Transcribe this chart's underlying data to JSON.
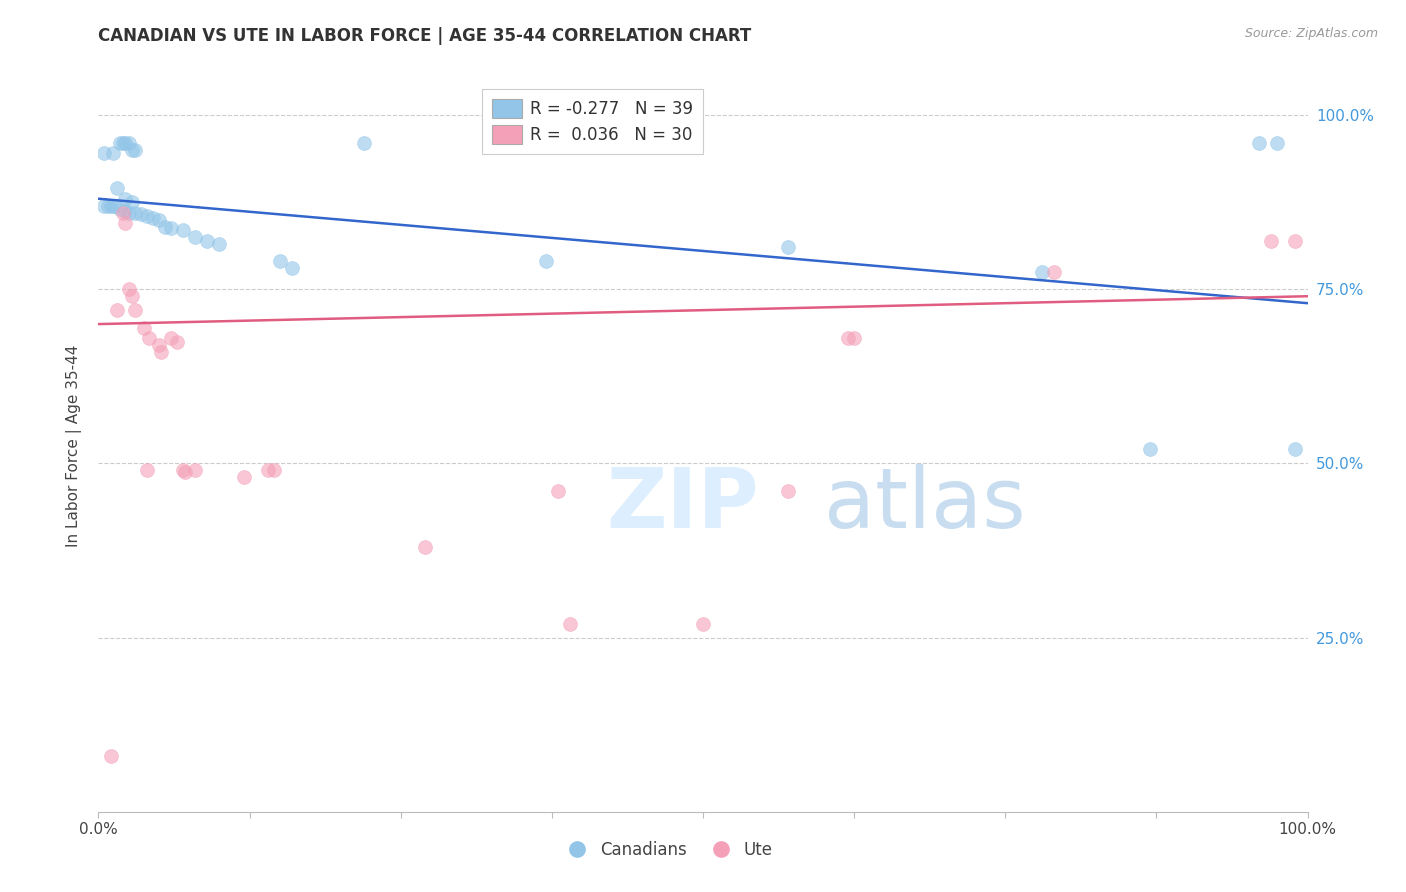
{
  "title": "CANADIAN VS UTE IN LABOR FORCE | AGE 35-44 CORRELATION CHART",
  "source": "Source: ZipAtlas.com",
  "ylabel": "In Labor Force | Age 35-44",
  "ytick_vals": [
    0.25,
    0.5,
    0.75,
    1.0
  ],
  "ytick_labels": [
    "25.0%",
    "50.0%",
    "75.0%",
    "100.0%"
  ],
  "blue_color": "#92C5E8",
  "pink_color": "#F4A0B8",
  "blue_line_color": "#3366CC",
  "pink_line_color": "#E05C80",
  "blue_scatter": [
    [
      0.005,
      0.945
    ],
    [
      0.012,
      0.945
    ],
    [
      0.018,
      0.96
    ],
    [
      0.02,
      0.96
    ],
    [
      0.022,
      0.96
    ],
    [
      0.025,
      0.96
    ],
    [
      0.028,
      0.95
    ],
    [
      0.03,
      0.95
    ],
    [
      0.015,
      0.895
    ],
    [
      0.022,
      0.88
    ],
    [
      0.028,
      0.875
    ],
    [
      0.005,
      0.87
    ],
    [
      0.008,
      0.87
    ],
    [
      0.01,
      0.87
    ],
    [
      0.013,
      0.87
    ],
    [
      0.018,
      0.865
    ],
    [
      0.022,
      0.862
    ],
    [
      0.025,
      0.86
    ],
    [
      0.03,
      0.86
    ],
    [
      0.035,
      0.858
    ],
    [
      0.04,
      0.855
    ],
    [
      0.045,
      0.852
    ],
    [
      0.05,
      0.85
    ],
    [
      0.055,
      0.84
    ],
    [
      0.06,
      0.838
    ],
    [
      0.07,
      0.835
    ],
    [
      0.08,
      0.825
    ],
    [
      0.09,
      0.82
    ],
    [
      0.1,
      0.815
    ],
    [
      0.15,
      0.79
    ],
    [
      0.16,
      0.78
    ],
    [
      0.22,
      0.96
    ],
    [
      0.37,
      0.79
    ],
    [
      0.57,
      0.81
    ],
    [
      0.78,
      0.775
    ],
    [
      0.87,
      0.52
    ],
    [
      0.96,
      0.96
    ],
    [
      0.975,
      0.96
    ],
    [
      0.99,
      0.52
    ]
  ],
  "pink_scatter": [
    [
      0.01,
      0.08
    ],
    [
      0.015,
      0.72
    ],
    [
      0.02,
      0.86
    ],
    [
      0.022,
      0.845
    ],
    [
      0.025,
      0.75
    ],
    [
      0.028,
      0.74
    ],
    [
      0.03,
      0.72
    ],
    [
      0.038,
      0.695
    ],
    [
      0.042,
      0.68
    ],
    [
      0.05,
      0.67
    ],
    [
      0.052,
      0.66
    ],
    [
      0.06,
      0.68
    ],
    [
      0.065,
      0.675
    ],
    [
      0.07,
      0.49
    ],
    [
      0.072,
      0.488
    ],
    [
      0.08,
      0.49
    ],
    [
      0.12,
      0.48
    ],
    [
      0.14,
      0.49
    ],
    [
      0.145,
      0.49
    ],
    [
      0.27,
      0.38
    ],
    [
      0.39,
      0.27
    ],
    [
      0.5,
      0.27
    ],
    [
      0.57,
      0.46
    ],
    [
      0.62,
      0.68
    ],
    [
      0.625,
      0.68
    ],
    [
      0.79,
      0.775
    ],
    [
      0.97,
      0.82
    ],
    [
      0.99,
      0.82
    ],
    [
      0.38,
      0.46
    ],
    [
      0.04,
      0.49
    ]
  ],
  "blue_trendline_x": [
    0.0,
    1.0
  ],
  "blue_trendline_y": [
    0.88,
    0.73
  ],
  "pink_trendline_x": [
    0.0,
    1.0
  ],
  "pink_trendline_y": [
    0.7,
    0.74
  ],
  "xlim": [
    0.0,
    1.0
  ],
  "ylim": [
    0.0,
    1.05
  ],
  "legend1_labels": [
    "R = -0.277   N = 39",
    "R =  0.036   N = 30"
  ],
  "legend2_labels": [
    "Canadians",
    "Ute"
  ],
  "r_values": [
    "-0.277",
    " 0.036"
  ],
  "n_values": [
    "39",
    "30"
  ]
}
